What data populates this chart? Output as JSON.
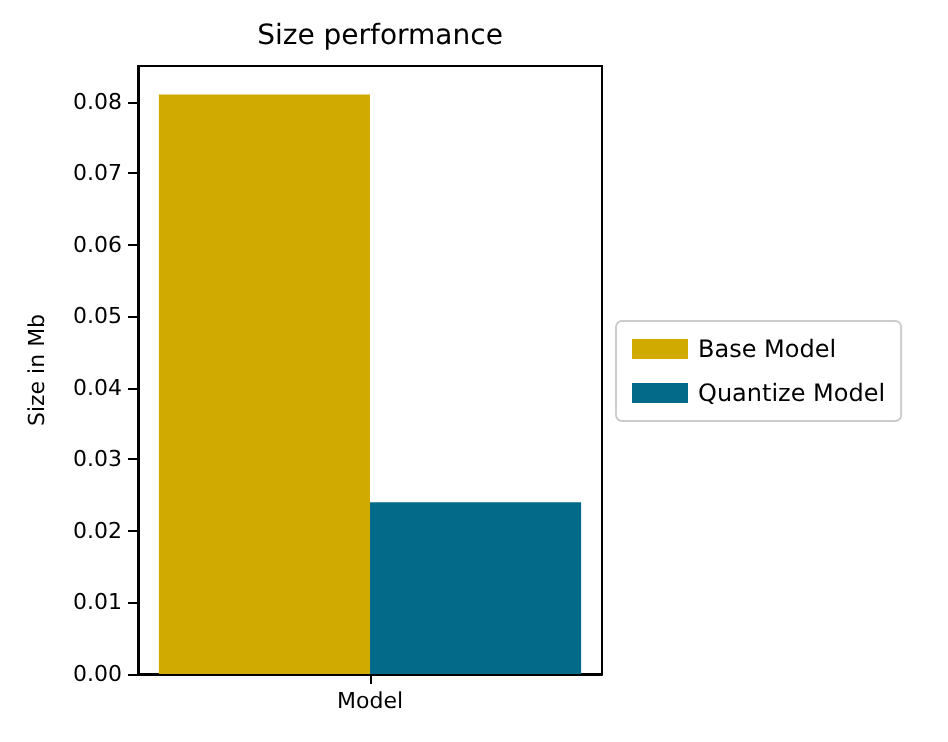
{
  "chart_data": {
    "type": "bar",
    "title": "Size performance",
    "ylabel": "Size in Mb",
    "categories": [
      "Model"
    ],
    "series": [
      {
        "name": "Base Model",
        "color": "#d1aa00",
        "values": [
          0.081
        ]
      },
      {
        "name": "Quantize Model",
        "color": "#046a8a",
        "values": [
          0.024
        ]
      }
    ],
    "ylim": [
      0,
      0.085
    ],
    "yticks": [
      {
        "value": 0,
        "label": "0.00"
      },
      {
        "value": 0.01,
        "label": "0.01"
      },
      {
        "value": 0.02,
        "label": "0.02"
      },
      {
        "value": 0.03,
        "label": "0.03"
      },
      {
        "value": 0.04,
        "label": "0.04"
      },
      {
        "value": 0.05,
        "label": "0.05"
      },
      {
        "value": 0.06,
        "label": "0.06"
      },
      {
        "value": 0.07,
        "label": "0.07"
      },
      {
        "value": 0.08,
        "label": "0.08"
      }
    ],
    "grid": false,
    "legend": "right"
  }
}
